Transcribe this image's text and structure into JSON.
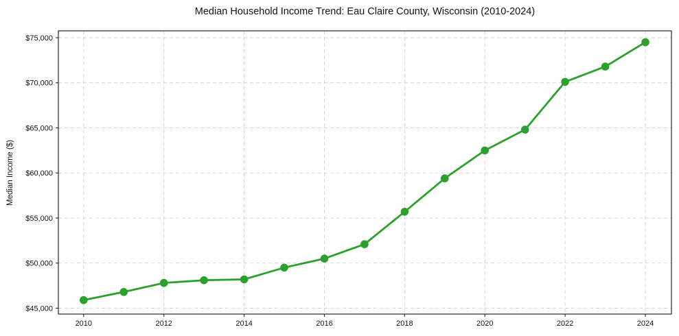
{
  "chart_data": {
    "type": "line",
    "title": "Median Household Income Trend: Eau Claire County, Wisconsin (2010-2024)",
    "xlabel": "",
    "ylabel": "Median Income ($)",
    "x": [
      2010,
      2011,
      2012,
      2013,
      2014,
      2015,
      2016,
      2017,
      2018,
      2019,
      2020,
      2021,
      2022,
      2023,
      2024
    ],
    "values": [
      45900,
      46800,
      47800,
      48100,
      48200,
      49500,
      50500,
      52100,
      55700,
      59400,
      62500,
      64800,
      70100,
      71800,
      74500
    ],
    "x_ticks": [
      2010,
      2012,
      2014,
      2016,
      2018,
      2020,
      2022,
      2024
    ],
    "x_tick_labels": [
      "2010",
      "2012",
      "2014",
      "2016",
      "2018",
      "2020",
      "2022",
      "2024"
    ],
    "y_ticks": [
      45000,
      50000,
      55000,
      60000,
      65000,
      70000,
      75000
    ],
    "y_tick_labels": [
      "$45,000",
      "$50,000",
      "$55,000",
      "$60,000",
      "$65,000",
      "$70,000",
      "$75,000"
    ],
    "xlim": [
      2009.37,
      2024.65
    ],
    "ylim": [
      44350,
      75760
    ],
    "grid": true,
    "grid_style": "dashed",
    "legend": false,
    "line_color": "#2ca02c",
    "marker_color": "#2ca02c",
    "grid_color": "#cfcfcf",
    "axis_color": "#262626",
    "text_color": "#111111",
    "background_color": "#ffffff"
  }
}
